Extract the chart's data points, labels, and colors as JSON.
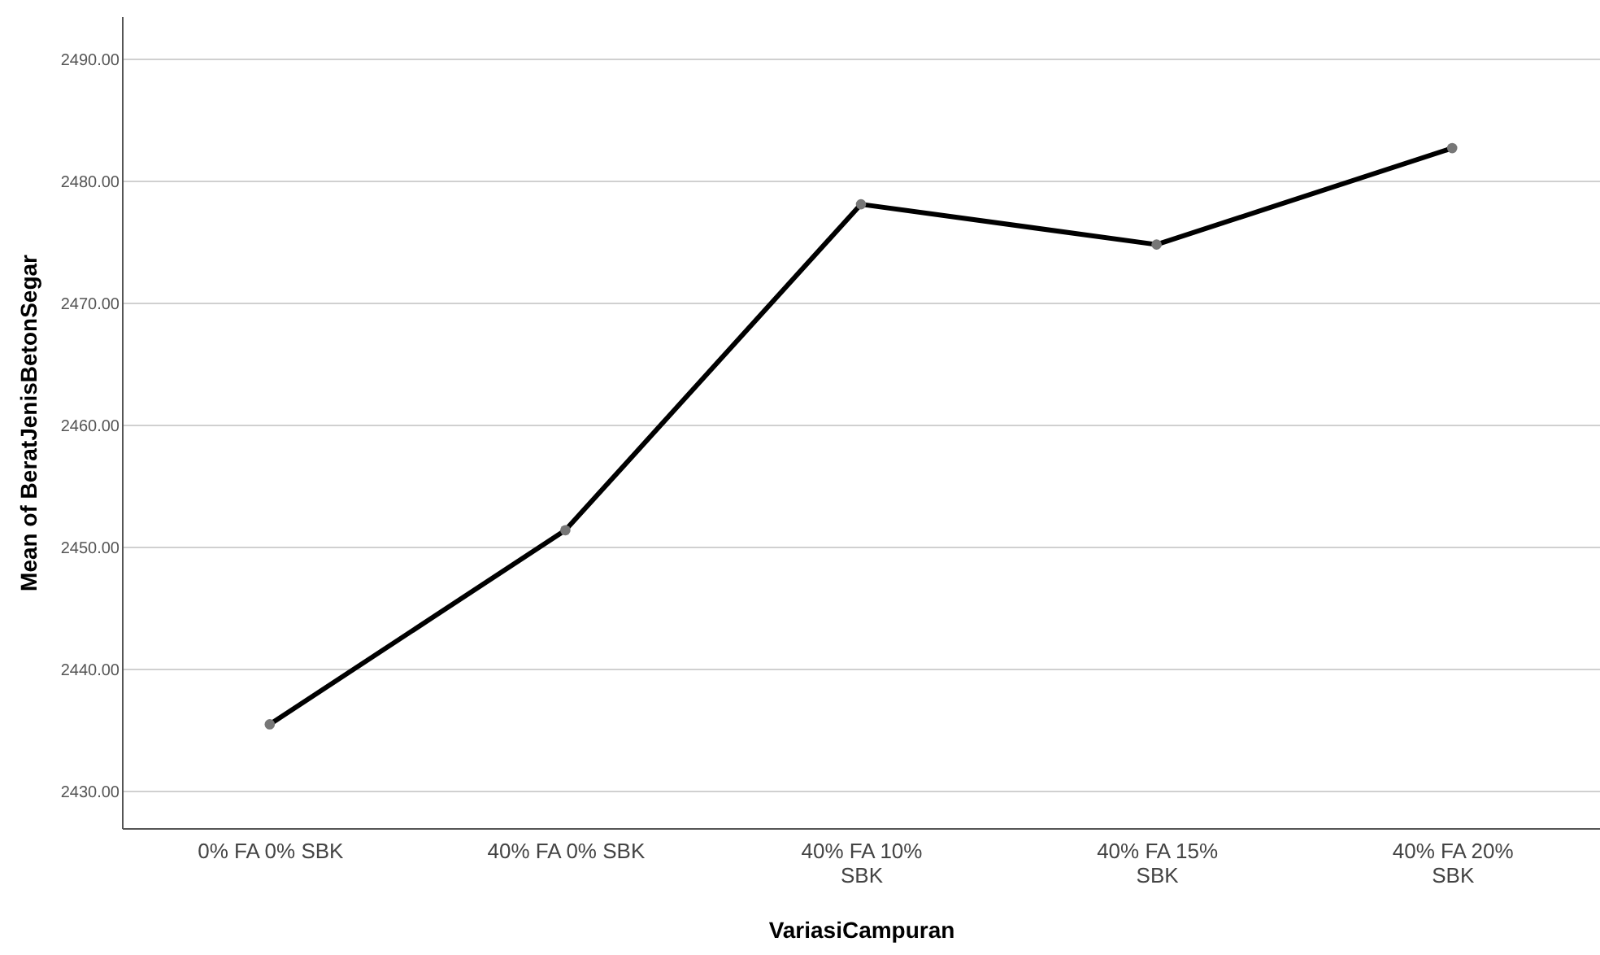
{
  "chart_data": {
    "type": "line",
    "categories": [
      "0% FA 0% SBK",
      "40% FA 0% SBK",
      "40% FA 10% SBK",
      "40% FA 15% SBK",
      "40% FA 20% SBK"
    ],
    "series": [
      {
        "color": "#000000",
        "values": [
          2435.5,
          2451.4,
          2478.1,
          2474.8,
          2482.7
        ]
      }
    ],
    "xlabel": "VariasiCampuran",
    "ylabel": "Mean of BeratJenisBetonSegar",
    "ylim": [
      2427,
      2493.5
    ],
    "yticks": [
      {
        "value": 2430,
        "label": "2430.00"
      },
      {
        "value": 2440,
        "label": "2440.00"
      },
      {
        "value": 2450,
        "label": "2450.00"
      },
      {
        "value": 2460,
        "label": "2460.00"
      },
      {
        "value": 2470,
        "label": "2470.00"
      },
      {
        "value": 2480,
        "label": "2480.00"
      },
      {
        "value": 2490,
        "label": "2490.00"
      }
    ],
    "grid": "y",
    "marker": "circle",
    "line_style": "solid"
  }
}
